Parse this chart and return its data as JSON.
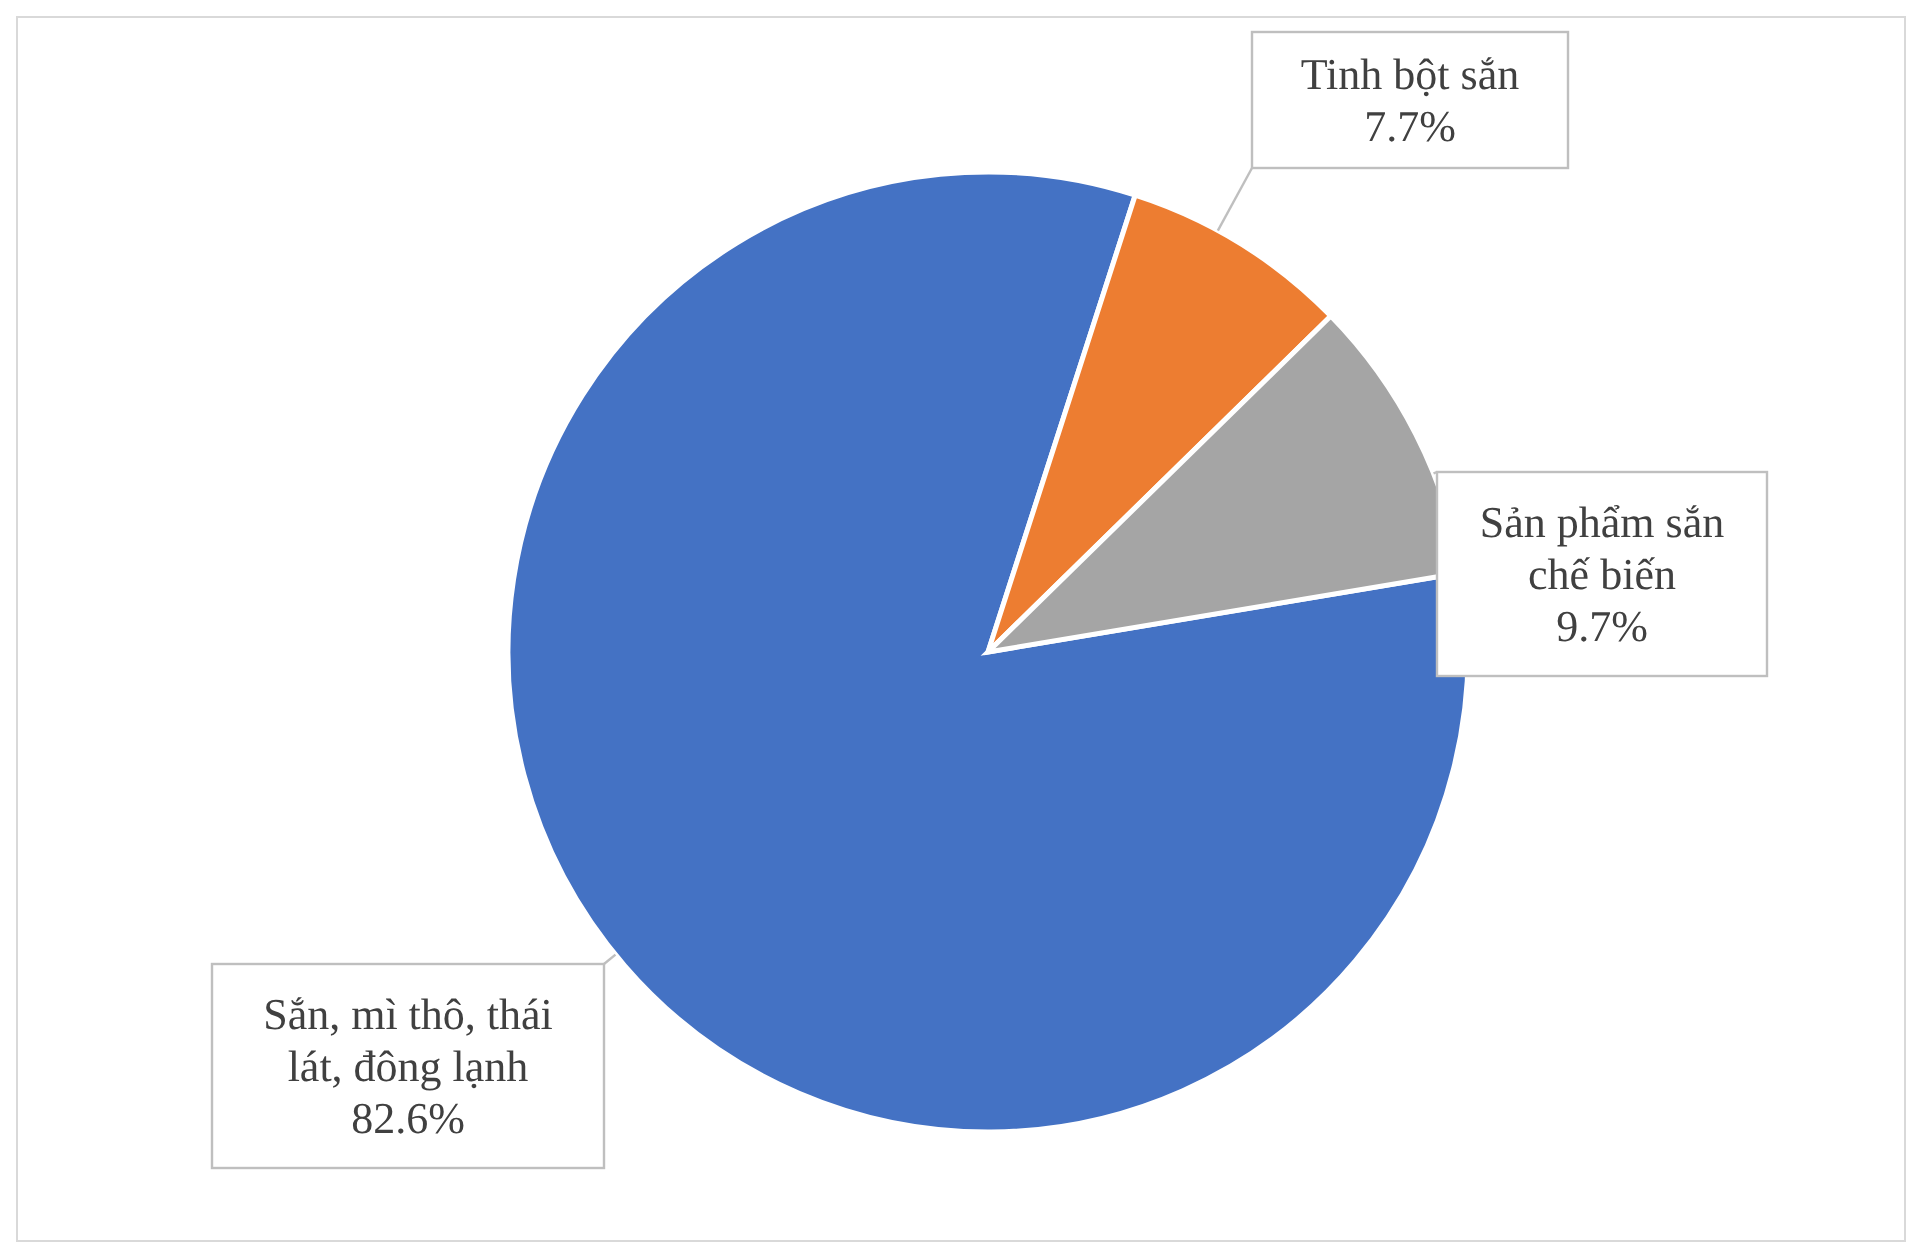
{
  "chart_data": {
    "type": "pie",
    "categories": [
      "Sắn, mì thô, thái lát, đông lạnh",
      "Tinh bột sắn",
      "Sản phẩm sắn chế biến"
    ],
    "values": [
      82.6,
      7.7,
      9.7
    ],
    "colors": [
      "#4472c4",
      "#ed7d31",
      "#a5a5a5"
    ],
    "value_labels": [
      "82.6%",
      "7.7%",
      "9.7%"
    ],
    "legend": false
  }
}
